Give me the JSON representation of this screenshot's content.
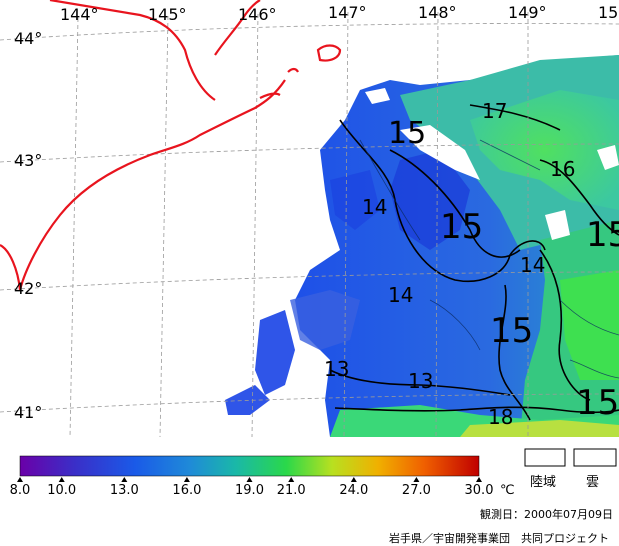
{
  "map": {
    "longitude_labels": [
      {
        "text": "144°"
      },
      {
        "text": "145°"
      },
      {
        "text": "146°"
      },
      {
        "text": "147°"
      },
      {
        "text": "148°"
      },
      {
        "text": "149°"
      },
      {
        "text": "15"
      }
    ],
    "latitude_labels": [
      {
        "text": "44°"
      },
      {
        "text": "43°"
      },
      {
        "text": "42°"
      },
      {
        "text": "41°"
      }
    ],
    "contour_labels": [
      {
        "text": "17"
      },
      {
        "text": "15"
      },
      {
        "text": "16"
      },
      {
        "text": "14"
      },
      {
        "text": "15"
      },
      {
        "text": "15"
      },
      {
        "text": "14"
      },
      {
        "text": "14"
      },
      {
        "text": "15"
      },
      {
        "text": "13"
      },
      {
        "text": "13"
      },
      {
        "text": "15"
      },
      {
        "text": "18"
      }
    ],
    "colors": {
      "coastline": "#e8141e",
      "grid": "#9a9a9a",
      "contour": "#000000",
      "land": "#ffffff"
    }
  },
  "legend": {
    "ticks": [
      "8.0",
      "10.0",
      "13.0",
      "16.0",
      "19.0",
      "21.0",
      "24.0",
      "27.0",
      "30.0"
    ],
    "unit": "℃",
    "colorscale": [
      "#6a00a8",
      "#3a2fc8",
      "#1a5ae8",
      "#1f8ad8",
      "#1ab8a8",
      "#2ad84a",
      "#b8e020",
      "#f0b000",
      "#f06000",
      "#c00000"
    ],
    "land_label": "陸域",
    "cloud_label": "雲"
  },
  "observation": "観測日：2000年07月09日",
  "credit": "岩手県／宇宙開発事業団　共同プロジェクト"
}
